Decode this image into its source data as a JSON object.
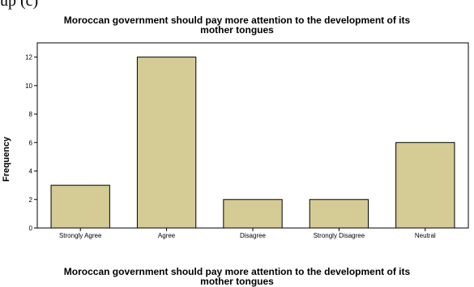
{
  "partial_text": "up (c)",
  "chart_data": {
    "type": "bar",
    "title_lines": [
      "Moroccan government should pay more attention to the development of its",
      "mother tongues"
    ],
    "xlabel_lines": [
      "Moroccan government should pay more attention to the development of its",
      "mother tongues"
    ],
    "ylabel": "Frequency",
    "categories": [
      "Strongly Agree",
      "Agree",
      "Disagree",
      "Strongly Disagree",
      "Neutral"
    ],
    "values": [
      3,
      12,
      2,
      2,
      6
    ],
    "yticks": [
      0,
      2,
      4,
      6,
      8,
      10,
      12
    ],
    "ylim": [
      0,
      13
    ],
    "bar_color": "#d4cc94",
    "bar_stroke": "#000000",
    "plot_background": "#ffffff",
    "grid": false,
    "legend": "none"
  }
}
